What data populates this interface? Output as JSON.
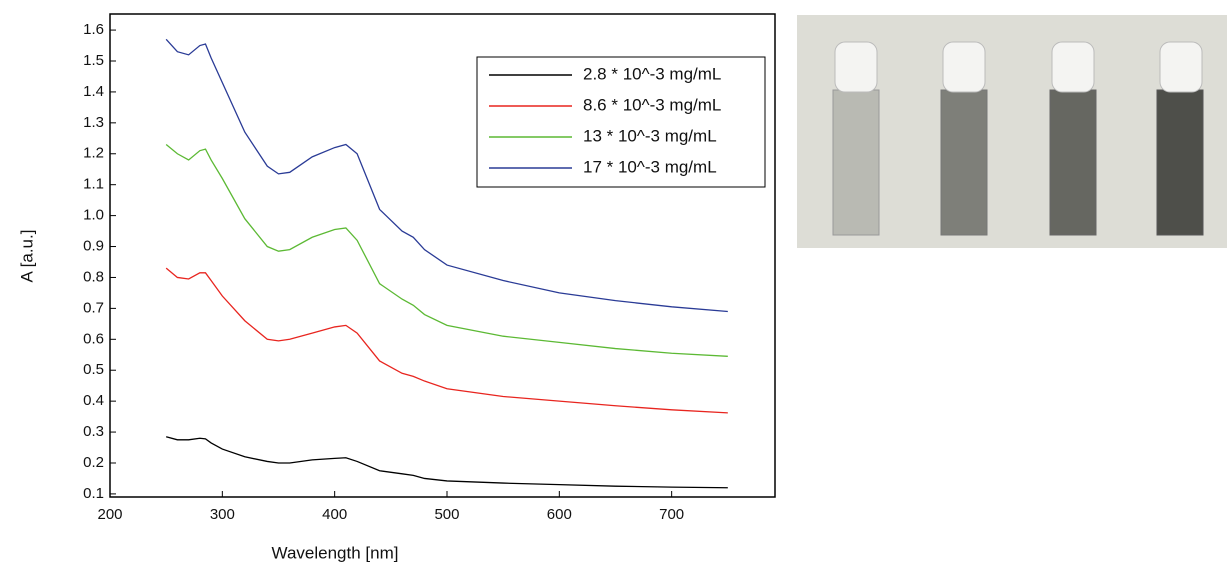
{
  "chart_data": {
    "type": "line",
    "xlabel": "Wavelength  [nm]",
    "ylabel": "A [a.u.]",
    "x": [
      250,
      260,
      270,
      280,
      285,
      290,
      300,
      320,
      340,
      350,
      360,
      380,
      400,
      410,
      420,
      440,
      460,
      470,
      480,
      500,
      550,
      600,
      650,
      700,
      750
    ],
    "series": [
      {
        "name": "2.8 * 10^-3 mg/mL",
        "color": "#000000",
        "values": [
          0.285,
          0.275,
          0.275,
          0.28,
          0.278,
          0.265,
          0.245,
          0.22,
          0.205,
          0.2,
          0.2,
          0.21,
          0.215,
          0.217,
          0.205,
          0.175,
          0.165,
          0.16,
          0.15,
          0.142,
          0.135,
          0.13,
          0.125,
          0.122,
          0.12
        ]
      },
      {
        "name": "8.6 * 10^-3 mg/mL",
        "color": "#e8251f",
        "values": [
          0.83,
          0.8,
          0.795,
          0.815,
          0.815,
          0.79,
          0.74,
          0.66,
          0.6,
          0.595,
          0.6,
          0.62,
          0.64,
          0.645,
          0.62,
          0.53,
          0.49,
          0.48,
          0.465,
          0.44,
          0.415,
          0.4,
          0.385,
          0.372,
          0.362
        ]
      },
      {
        "name": "13 * 10^-3 mg/mL",
        "color": "#5cb934",
        "values": [
          1.23,
          1.2,
          1.18,
          1.21,
          1.215,
          1.18,
          1.12,
          0.99,
          0.9,
          0.885,
          0.89,
          0.93,
          0.955,
          0.96,
          0.92,
          0.78,
          0.73,
          0.71,
          0.68,
          0.645,
          0.61,
          0.59,
          0.57,
          0.555,
          0.545
        ]
      },
      {
        "name": "17 * 10^-3 mg/mL",
        "color": "#2a3b96",
        "values": [
          1.57,
          1.53,
          1.52,
          1.55,
          1.555,
          1.51,
          1.43,
          1.27,
          1.16,
          1.135,
          1.14,
          1.19,
          1.22,
          1.23,
          1.2,
          1.02,
          0.95,
          0.93,
          0.89,
          0.84,
          0.79,
          0.75,
          0.725,
          0.705,
          0.69
        ]
      }
    ],
    "xlim": [
      200,
      792
    ],
    "xticks": [
      200,
      300,
      400,
      500,
      600,
      700
    ],
    "ylim": [
      0.09,
      1.652
    ],
    "yticks": [
      0.1,
      0.2,
      0.3,
      0.4,
      0.5,
      0.6,
      0.7,
      0.8,
      0.9,
      {
        "value": 1,
        "label": "1.0"
      },
      1.1,
      1.2,
      1.3,
      1.4,
      1.5,
      1.6
    ],
    "legend": "upper right",
    "grid": false
  }
}
